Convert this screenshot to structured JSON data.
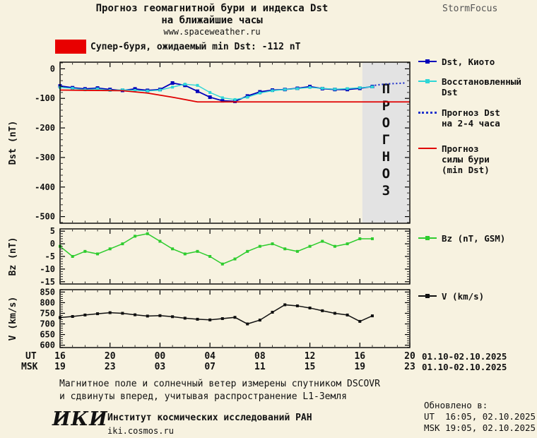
{
  "header": {
    "title1": "Прогноз геомагнитной бури и индекса Dst",
    "title2": "на ближайшие часы",
    "site": "www.spaceweather.ru",
    "brand": "StormFocus"
  },
  "alert": {
    "swatch_color": "#e80000",
    "label": "Супер-буря, ожидаемый min Dst: -112 nT"
  },
  "legend": {
    "dst_kyoto": "Dst, Киото",
    "dst_restored": "Восстановленный\nDst",
    "dst_forecast": "Прогноз Dst\nна 2-4 часа",
    "storm_forecast": "Прогноз\nсилы бури\n(min Dst)",
    "bz": "Bz (nT, GSM)",
    "v": "V (km/s)"
  },
  "xaxis": {
    "ut_label": "UT",
    "msk_label": "MSK",
    "ut_ticks": [
      "16",
      "20",
      "00",
      "04",
      "08",
      "12",
      "16",
      "20"
    ],
    "msk_ticks": [
      "19",
      "23",
      "03",
      "07",
      "11",
      "15",
      "19",
      "23"
    ],
    "ut_date": "01.10-02.10.2025",
    "msk_date": "01.10-02.10.2025"
  },
  "footer": {
    "note_line1": "Магнитное поле и солнечный ветер измерены спутником DSCOVR",
    "note_line2": "и сдвинуты вперед, учитывая распространение L1-Земля",
    "logo": "ИКИ",
    "institute": "Институт космических исследований РАН",
    "site": "iki.cosmos.ru",
    "updated_label": "Обновлено в:",
    "updated_ut": "UT  16:05, 02.10.2025",
    "updated_msk": "MSK 19:05, 02.10.2025"
  },
  "chart_data": [
    {
      "id": "dst",
      "type": "line",
      "ylabel": "Dst (nT)",
      "ylim": [
        -500,
        0
      ],
      "yticks": [
        0,
        -100,
        -200,
        -300,
        -400,
        -500
      ],
      "yminor_step": 20,
      "xlim": [
        0,
        28
      ],
      "x_axis_note": "hours from 16 UT 01.10.2025",
      "forecast_region": [
        24.2,
        28
      ],
      "forecast_label": "ПРОГНОЗ",
      "series": [
        {
          "key": "dst-kyoto",
          "name": "Dst, Киото",
          "color": "#0000bb",
          "marker": "square",
          "marker_size": 5,
          "width": 1.8,
          "x": [
            0,
            1,
            2,
            3,
            4,
            5,
            6,
            7,
            8,
            9,
            10,
            11,
            12,
            13,
            14,
            15,
            16,
            17,
            18,
            19,
            20,
            21,
            22,
            23,
            24,
            25
          ],
          "y": [
            -58,
            -64,
            -68,
            -65,
            -70,
            -73,
            -68,
            -73,
            -70,
            -48,
            -56,
            -76,
            -96,
            -108,
            -110,
            -92,
            -78,
            -72,
            -70,
            -66,
            -60,
            -67,
            -70,
            -70,
            -66,
            -60
          ]
        },
        {
          "key": "dst-restored",
          "name": "Восстановленный Dst",
          "color": "#2fd6d6",
          "marker": "square",
          "marker_size": 4,
          "width": 1.4,
          "x": [
            0,
            1,
            2,
            3,
            4,
            5,
            6,
            7,
            8,
            9,
            10,
            11,
            12,
            13,
            14,
            15,
            16,
            17,
            18,
            19,
            20,
            21,
            22,
            23,
            24,
            25
          ],
          "y": [
            -63,
            -66,
            -71,
            -68,
            -73,
            -71,
            -73,
            -75,
            -72,
            -62,
            -52,
            -56,
            -80,
            -98,
            -104,
            -96,
            -82,
            -74,
            -70,
            -67,
            -63,
            -66,
            -69,
            -67,
            -64,
            -61
          ]
        },
        {
          "key": "dst-forecast-2-4h",
          "name": "Прогноз Dst на 2-4 часа",
          "color": "#2233cc",
          "style": "dotted",
          "x": [
            25.2,
            25.7,
            26.2,
            26.7,
            27.2,
            27.6
          ],
          "y": [
            -56,
            -53,
            -51,
            -50,
            -49,
            -48
          ]
        },
        {
          "key": "storm-strength-forecast",
          "name": "Прогноз силы бури (min Dst)",
          "color": "#e00000",
          "width": 1.8,
          "x": [
            0,
            5,
            7,
            9,
            11,
            28
          ],
          "y": [
            -72,
            -74,
            -82,
            -96,
            -112,
            -112
          ]
        }
      ]
    },
    {
      "id": "bz",
      "type": "line",
      "ylabel": "Bz (nT)",
      "ylim": [
        -15,
        5
      ],
      "yticks": [
        5,
        0,
        -5,
        -10,
        -15
      ],
      "yminor_step": 1,
      "xlim": [
        0,
        28
      ],
      "series": [
        {
          "key": "bz-gsm",
          "name": "Bz (nT, GSM)",
          "color": "#2ecc2e",
          "marker": "square",
          "marker_size": 4,
          "width": 1.5,
          "x": [
            0,
            1,
            2,
            3,
            4,
            5,
            6,
            7,
            8,
            9,
            10,
            11,
            12,
            13,
            14,
            15,
            16,
            17,
            18,
            19,
            20,
            21,
            22,
            23,
            24,
            25
          ],
          "y": [
            -1,
            -5,
            -3,
            -4,
            -2,
            0,
            3,
            4,
            1,
            -2,
            -4,
            -3,
            -5,
            -8,
            -6,
            -3,
            -1,
            0,
            -2,
            -3,
            -1,
            1,
            -1,
            0,
            2,
            2
          ]
        }
      ]
    },
    {
      "id": "v",
      "type": "line",
      "ylabel": "V (km/s)",
      "ylim": [
        600,
        850
      ],
      "yticks": [
        850,
        800,
        750,
        700,
        650,
        600
      ],
      "yminor_step": 10,
      "xlim": [
        0,
        28
      ],
      "series": [
        {
          "key": "solar-wind-speed",
          "name": "V (km/s)",
          "color": "#111111",
          "marker": "square",
          "marker_size": 4,
          "width": 1.5,
          "x": [
            0,
            1,
            2,
            3,
            4,
            5,
            6,
            7,
            8,
            9,
            10,
            11,
            12,
            13,
            14,
            15,
            16,
            17,
            18,
            19,
            20,
            21,
            22,
            23,
            24,
            25
          ],
          "y": [
            730,
            735,
            742,
            748,
            753,
            750,
            743,
            737,
            739,
            734,
            727,
            722,
            719,
            725,
            731,
            700,
            718,
            755,
            790,
            785,
            775,
            762,
            750,
            742,
            712,
            738
          ]
        }
      ]
    }
  ]
}
